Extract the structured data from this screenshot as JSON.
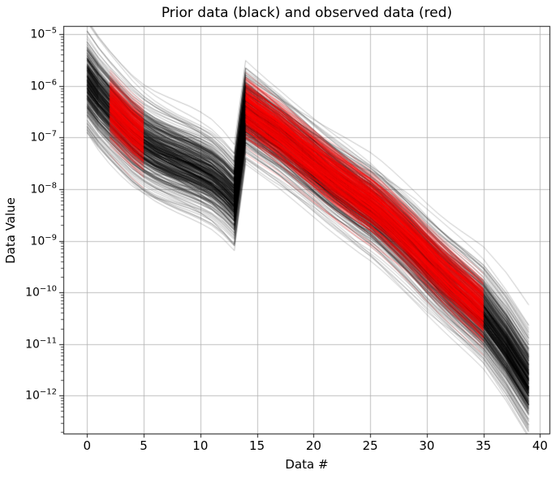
{
  "colors": {
    "background": "#ffffff",
    "grid": "#b0b0b0",
    "axis": "#000000",
    "prior": "#000000",
    "observed": "#ff0000"
  },
  "chart_data": {
    "type": "line",
    "title": "Prior data (black) and observed data (red)",
    "xlabel": "Data #",
    "ylabel": "Data Value",
    "yscale": "log",
    "grid": true,
    "legend_position": "none",
    "xlim": [
      -2.1,
      40.9
    ],
    "ylim_log10": [
      -12.75,
      -4.84
    ],
    "x_ticks": [
      0,
      5,
      10,
      15,
      20,
      25,
      30,
      35,
      40
    ],
    "y_ticks": [
      {
        "base": "10",
        "exp": "−5",
        "log10": -5
      },
      {
        "base": "10",
        "exp": "−6",
        "log10": -6
      },
      {
        "base": "10",
        "exp": "−7",
        "log10": -7
      },
      {
        "base": "10",
        "exp": "−8",
        "log10": -8
      },
      {
        "base": "10",
        "exp": "−9",
        "log10": -9
      },
      {
        "base": "10",
        "exp": "−10",
        "log10": -10
      },
      {
        "base": "10",
        "exp": "−11",
        "log10": -11
      },
      {
        "base": "10",
        "exp": "−12",
        "log10": -12
      }
    ],
    "series": [
      {
        "name": "prior-ensemble",
        "label": "Prior data (black)",
        "color": "#000000",
        "n_lines": 400,
        "alpha": 0.35,
        "line_width": 0.7,
        "spread_log10": 0.33,
        "tilt_log10": 0.2,
        "segments": [
          {
            "x": [
              0,
              1,
              2,
              3,
              4,
              5,
              6,
              7,
              8,
              9,
              10,
              11,
              12,
              13,
              14,
              15,
              16,
              17,
              18,
              19,
              20,
              21,
              22,
              23,
              24,
              25,
              26,
              27,
              28,
              29,
              30,
              31,
              32,
              33,
              34,
              35,
              36,
              37,
              38,
              39
            ],
            "median_log10": [
              -5.9,
              -6.2,
              -6.45,
              -6.68,
              -6.9,
              -7.08,
              -7.22,
              -7.33,
              -7.43,
              -7.52,
              -7.62,
              -7.74,
              -7.92,
              -8.15,
              -6.48,
              -6.64,
              -6.8,
              -6.96,
              -7.14,
              -7.32,
              -7.5,
              -7.68,
              -7.85,
              -8.01,
              -8.17,
              -8.32,
              -8.5,
              -8.7,
              -8.91,
              -9.13,
              -9.36,
              -9.58,
              -9.79,
              -9.99,
              -10.19,
              -10.4,
              -10.7,
              -11.0,
              -11.35,
              -11.7
            ]
          }
        ]
      },
      {
        "name": "observed-ensemble",
        "label": "observed data (red)",
        "color": "#ff0000",
        "n_lines": 400,
        "alpha": 0.38,
        "line_width": 0.7,
        "spread_log10": 0.26,
        "tilt_log10": 0.12,
        "segments": [
          {
            "x": [
              2,
              3,
              4,
              5
            ],
            "median_log10": [
              -6.4,
              -6.63,
              -6.85,
              -7.03
            ]
          },
          {
            "x": [
              14,
              15,
              16,
              17,
              18,
              19,
              20,
              21,
              22,
              23,
              24,
              25,
              26,
              27,
              28,
              29,
              30,
              31,
              32,
              33,
              34,
              35
            ],
            "median_log10": [
              -6.43,
              -6.59,
              -6.75,
              -6.91,
              -7.09,
              -7.27,
              -7.45,
              -7.63,
              -7.8,
              -7.96,
              -8.12,
              -8.27,
              -8.45,
              -8.65,
              -8.86,
              -9.08,
              -9.31,
              -9.53,
              -9.74,
              -9.94,
              -10.14,
              -10.35
            ]
          }
        ]
      }
    ]
  }
}
